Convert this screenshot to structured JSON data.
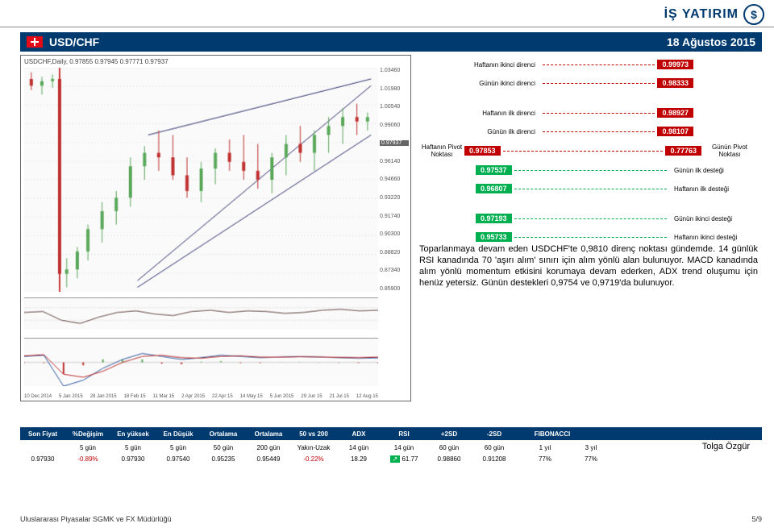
{
  "brand": {
    "name": "İŞ YATIRIM",
    "logo_glyph": "$"
  },
  "title": {
    "pair": "USD/CHF",
    "date": "18 Ağustos 2015"
  },
  "chart": {
    "ticker_label": "USDCHF,Daily, 0.97855 0.97945 0.97771 0.97937",
    "rsi_label": "RSI(14) 61.7474",
    "macd_label": "MACD(12,26,9) 0.007587 0.009017",
    "price_axis": [
      "1.03460",
      "1.01980",
      "1.00540",
      "0.99060",
      "0.97937",
      "0.96140",
      "0.94660",
      "0.93220",
      "0.91740",
      "0.90300",
      "0.88820",
      "0.87340",
      "0.85900"
    ],
    "current_badge": "0.97937",
    "date_axis": [
      "10 Dec 2014",
      "5 Jan 2015",
      "28 Jan 2015",
      "18 Feb 15",
      "11 Mar 15",
      "2 Apr 2015",
      "22 Apr 15",
      "14 May 15",
      "5 Jun 2015",
      "29 Jun 15",
      "21 Jul 15",
      "12 Aug 15"
    ],
    "main_series": {
      "type": "candlestick-with-channels",
      "background": "#fafafa",
      "up_color": "#5aa85a",
      "down_color": "#c03030",
      "vline_x": 0.1,
      "vline_color": "#c00000",
      "channel_lines": [
        {
          "x1": 0.32,
          "y1": 0.95,
          "x2": 0.98,
          "y2": 0.08,
          "color": "#303070",
          "width": 1
        },
        {
          "x1": 0.35,
          "y1": 0.3,
          "x2": 0.98,
          "y2": 0.05,
          "color": "#303070",
          "width": 1
        },
        {
          "x1": 0.32,
          "y1": 0.98,
          "x2": 0.98,
          "y2": 0.3,
          "color": "#303070",
          "width": 1
        }
      ],
      "candles_approx": [
        {
          "x": 0.02,
          "o": 0.05,
          "h": 0.02,
          "l": 0.1,
          "c": 0.08
        },
        {
          "x": 0.05,
          "o": 0.08,
          "h": 0.04,
          "l": 0.12,
          "c": 0.06
        },
        {
          "x": 0.08,
          "o": 0.06,
          "h": 0.03,
          "l": 0.09,
          "c": 0.05
        },
        {
          "x": 0.1,
          "o": 0.05,
          "h": 0.02,
          "l": 0.98,
          "c": 0.92
        },
        {
          "x": 0.12,
          "o": 0.92,
          "h": 0.85,
          "l": 0.98,
          "c": 0.9
        },
        {
          "x": 0.15,
          "o": 0.9,
          "h": 0.8,
          "l": 0.94,
          "c": 0.82
        },
        {
          "x": 0.18,
          "o": 0.82,
          "h": 0.7,
          "l": 0.86,
          "c": 0.72
        },
        {
          "x": 0.22,
          "o": 0.72,
          "h": 0.6,
          "l": 0.78,
          "c": 0.64
        },
        {
          "x": 0.26,
          "o": 0.64,
          "h": 0.55,
          "l": 0.7,
          "c": 0.58
        },
        {
          "x": 0.3,
          "o": 0.58,
          "h": 0.4,
          "l": 0.62,
          "c": 0.44
        },
        {
          "x": 0.34,
          "o": 0.44,
          "h": 0.35,
          "l": 0.5,
          "c": 0.38
        },
        {
          "x": 0.38,
          "o": 0.38,
          "h": 0.28,
          "l": 0.46,
          "c": 0.4
        },
        {
          "x": 0.42,
          "o": 0.4,
          "h": 0.3,
          "l": 0.5,
          "c": 0.48
        },
        {
          "x": 0.46,
          "o": 0.48,
          "h": 0.4,
          "l": 0.58,
          "c": 0.55
        },
        {
          "x": 0.5,
          "o": 0.55,
          "h": 0.42,
          "l": 0.6,
          "c": 0.45
        },
        {
          "x": 0.54,
          "o": 0.45,
          "h": 0.36,
          "l": 0.52,
          "c": 0.38
        },
        {
          "x": 0.58,
          "o": 0.38,
          "h": 0.32,
          "l": 0.46,
          "c": 0.42
        },
        {
          "x": 0.62,
          "o": 0.42,
          "h": 0.3,
          "l": 0.5,
          "c": 0.46
        },
        {
          "x": 0.66,
          "o": 0.46,
          "h": 0.34,
          "l": 0.54,
          "c": 0.5
        },
        {
          "x": 0.7,
          "o": 0.5,
          "h": 0.38,
          "l": 0.56,
          "c": 0.4
        },
        {
          "x": 0.74,
          "o": 0.4,
          "h": 0.3,
          "l": 0.48,
          "c": 0.34
        },
        {
          "x": 0.78,
          "o": 0.34,
          "h": 0.26,
          "l": 0.42,
          "c": 0.38
        },
        {
          "x": 0.82,
          "o": 0.38,
          "h": 0.28,
          "l": 0.46,
          "c": 0.3
        },
        {
          "x": 0.86,
          "o": 0.3,
          "h": 0.22,
          "l": 0.38,
          "c": 0.26
        },
        {
          "x": 0.9,
          "o": 0.26,
          "h": 0.18,
          "l": 0.34,
          "c": 0.22
        },
        {
          "x": 0.94,
          "o": 0.22,
          "h": 0.16,
          "l": 0.3,
          "c": 0.24
        },
        {
          "x": 0.97,
          "o": 0.24,
          "h": 0.2,
          "l": 0.28,
          "c": 0.22
        }
      ]
    },
    "rsi_series": {
      "color": "#644",
      "overbought": 70,
      "oversold": 30,
      "points": [
        55,
        58,
        30,
        20,
        40,
        55,
        60,
        50,
        45,
        58,
        62,
        55,
        60,
        58,
        52,
        55,
        62,
        65,
        60,
        62
      ]
    },
    "macd_series": {
      "macd_color": "#2b5aa0",
      "signal_color": "#c03030",
      "hist_up": "#5aa85a",
      "hist_down": "#c03030",
      "macd": [
        0.01,
        0.012,
        -0.04,
        -0.03,
        -0.01,
        0.005,
        0.015,
        0.01,
        0.005,
        0.008,
        0.012,
        0.01,
        0.008,
        0.009,
        0.01,
        0.009,
        0.008,
        0.007,
        0.0076
      ],
      "signal": [
        0.011,
        0.013,
        -0.02,
        -0.025,
        -0.015,
        0,
        0.01,
        0.012,
        0.008,
        0.007,
        0.01,
        0.011,
        0.009,
        0.0088,
        0.0095,
        0.0092,
        0.0085,
        0.008,
        0.009
      ]
    }
  },
  "levels": [
    {
      "label": "Haftanın ikinci direnci",
      "side": "right",
      "value": "0.99973",
      "color": "#c00000"
    },
    {
      "label": "Günün ikinci direnci",
      "side": "right",
      "value": "0.98333",
      "color": "#c00000"
    },
    {
      "type": "gap"
    },
    {
      "label": "Haftanın ilk direnci",
      "side": "right",
      "value": "0.98927",
      "color": "#c00000"
    },
    {
      "label": "Günün ilk direnci",
      "side": "right",
      "value": "0.98107",
      "color": "#c00000"
    },
    {
      "type": "pivot",
      "left_label": "Haftanın Pivot Noktası",
      "left_value": "0.97853",
      "left_color": "#c00000",
      "right_value": "0.77763",
      "right_color": "#c00000",
      "right_label": "Günün Pivot Noktası"
    },
    {
      "label": "Günün ilk desteği",
      "side": "left",
      "value": "0.97537",
      "color": "#00b050"
    },
    {
      "label": "Haftanın ilk desteği",
      "side": "left",
      "value": "0.96807",
      "color": "#00b050"
    },
    {
      "type": "gap"
    },
    {
      "label": "Günün ikinci desteği",
      "side": "left",
      "value": "0.97193",
      "color": "#00b050"
    },
    {
      "label": "Haftanın ikinci desteği",
      "side": "left",
      "value": "0.95733",
      "color": "#00b050"
    }
  ],
  "commentary": "Toparlanmaya devam eden USDCHF'te 0,9810 direnç noktası gündemde. 14 günlük RSI kanadında 70 'aşırı alım' sınırı için alım yönlü alan bulunuyor. MACD kanadında alım yönlü momentum etkisini korumaya devam ederken, ADX trend oluşumu için henüz yetersiz. Günün destekleri 0,9754 ve 0,9719'da bulunuyor.",
  "table": {
    "headers": [
      "Son Fiyat",
      "%Değişim",
      "En yüksek",
      "En Düşük",
      "Ortalama",
      "Ortalama",
      "50 vs 200",
      "ADX",
      "RSI",
      "+2SD",
      "-2SD",
      "FIBONACCI"
    ],
    "sub": [
      "",
      "5 gün",
      "5 gün",
      "5 gün",
      "50 gün",
      "200 gün",
      "Yakın-Uzak",
      "14 gün",
      "14 gün",
      "60 gün",
      "60 gün",
      "1 yıl",
      "3 yıl"
    ],
    "row": [
      "0.97930",
      "-0.89%",
      "0.97930",
      "0.97540",
      "0.95235",
      "0.95449",
      "-0.22%",
      "18.29",
      "61.77",
      "0.98860",
      "0.91208",
      "77%",
      "77%"
    ],
    "neg_indices": [
      1,
      6
    ],
    "arrow_index": 8,
    "arrow": "↗",
    "arrow_bg": "#00b050"
  },
  "author": "Tolga Özgür",
  "footer": {
    "left": "Uluslararası Piyasalar SGMK ve FX Müdürlüğü",
    "right": "5/9"
  },
  "colors": {
    "navy": "#003a6f",
    "red": "#c00000",
    "green": "#00b050"
  }
}
